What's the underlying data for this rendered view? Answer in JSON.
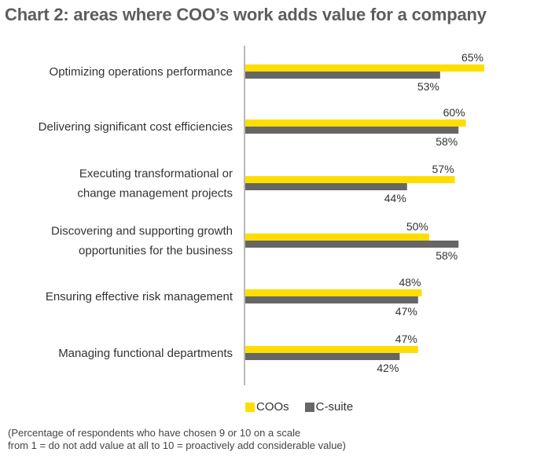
{
  "title": "Chart 2: areas where COO’s work adds value for a company",
  "colors": {
    "coos": "#FFDD00",
    "csuite": "#666666",
    "axis": "#BBBBBB"
  },
  "legend": {
    "coos": "COOs",
    "csuite": "C-suite"
  },
  "footnote": {
    "line1": "(Percentage of respondents who have chosen 9 or 10 on a scale",
    "line2": "from 1 = do not add value at all to 10 = proactively add considerable value)"
  },
  "chart_data": {
    "type": "bar",
    "orientation": "horizontal",
    "categories": [
      [
        "Optimizing operations performance"
      ],
      [
        "Delivering significant cost efficiencies"
      ],
      [
        "Executing transformational or",
        "change management projects"
      ],
      [
        "Discovering and supporting growth",
        "opportunities for the business"
      ],
      [
        "Ensuring effective risk management"
      ],
      [
        "Managing functional departments"
      ]
    ],
    "series": [
      {
        "name": "COOs",
        "values": [
          65,
          60,
          57,
          50,
          48,
          47
        ]
      },
      {
        "name": "C-suite",
        "values": [
          53,
          58,
          44,
          58,
          47,
          42
        ]
      }
    ],
    "value_suffix": "%",
    "xlim": [
      0,
      65
    ],
    "legend_position": "bottom",
    "grid": false
  }
}
